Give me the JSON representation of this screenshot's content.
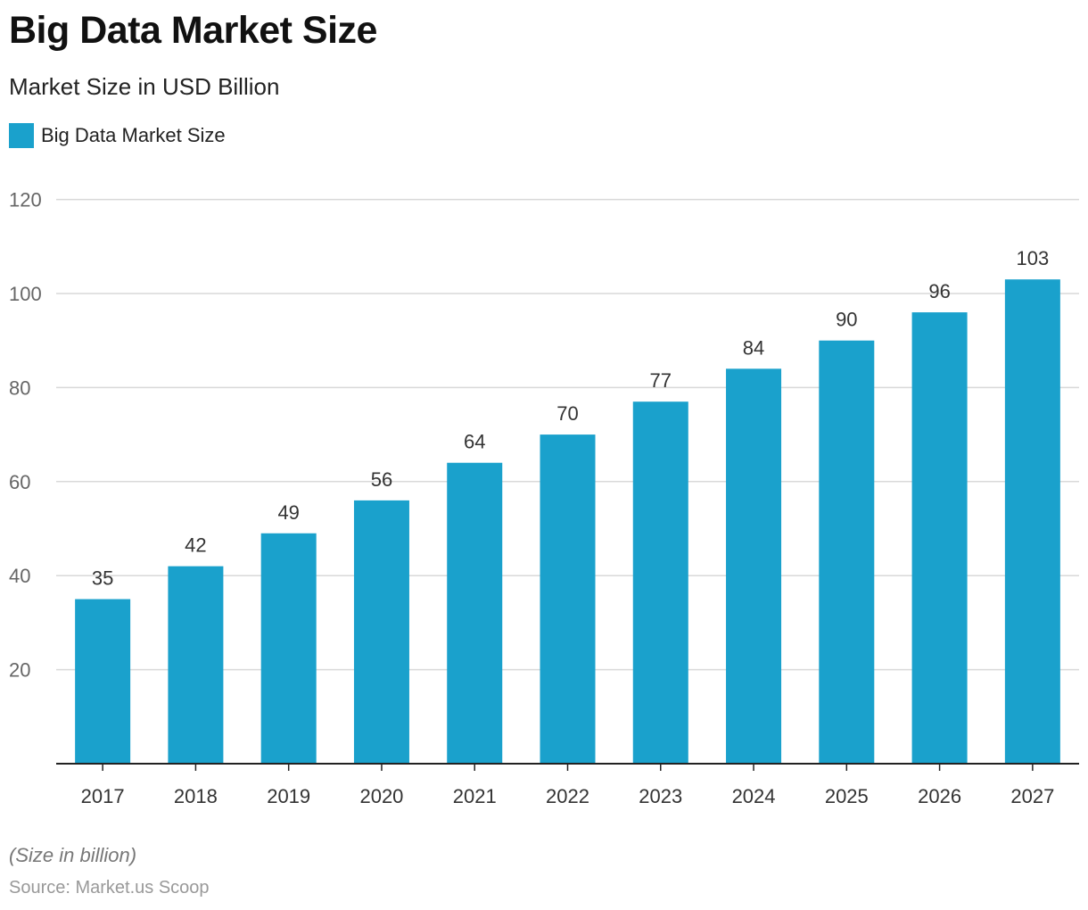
{
  "header": {
    "title": "Big Data Market Size",
    "subtitle": "Market Size in USD Billion"
  },
  "legend": {
    "label": "Big Data Market Size"
  },
  "footer": {
    "note": "(Size in billion)",
    "source": "Source: Market.us Scoop"
  },
  "colors": {
    "bar": "#1aa1cc",
    "grid": "#d9d9d9",
    "axis": "#222222"
  },
  "chart_data": {
    "type": "bar",
    "categories": [
      "2017",
      "2018",
      "2019",
      "2020",
      "2021",
      "2022",
      "2023",
      "2024",
      "2025",
      "2026",
      "2027"
    ],
    "series": [
      {
        "name": "Big Data Market Size",
        "values": [
          35,
          42,
          49,
          56,
          64,
          70,
          77,
          84,
          90,
          96,
          103
        ]
      }
    ],
    "title": "Big Data Market Size",
    "subtitle": "Market Size in USD Billion",
    "xlabel": "",
    "ylabel": "",
    "ylim": [
      0,
      120
    ],
    "yticks": [
      "20",
      "40",
      "60",
      "80",
      "100",
      "120"
    ],
    "data_labels": [
      "35",
      "42",
      "49",
      "56",
      "64",
      "70",
      "77",
      "84",
      "90",
      "96",
      "103"
    ],
    "grid": true,
    "legend_position": "top-left"
  }
}
